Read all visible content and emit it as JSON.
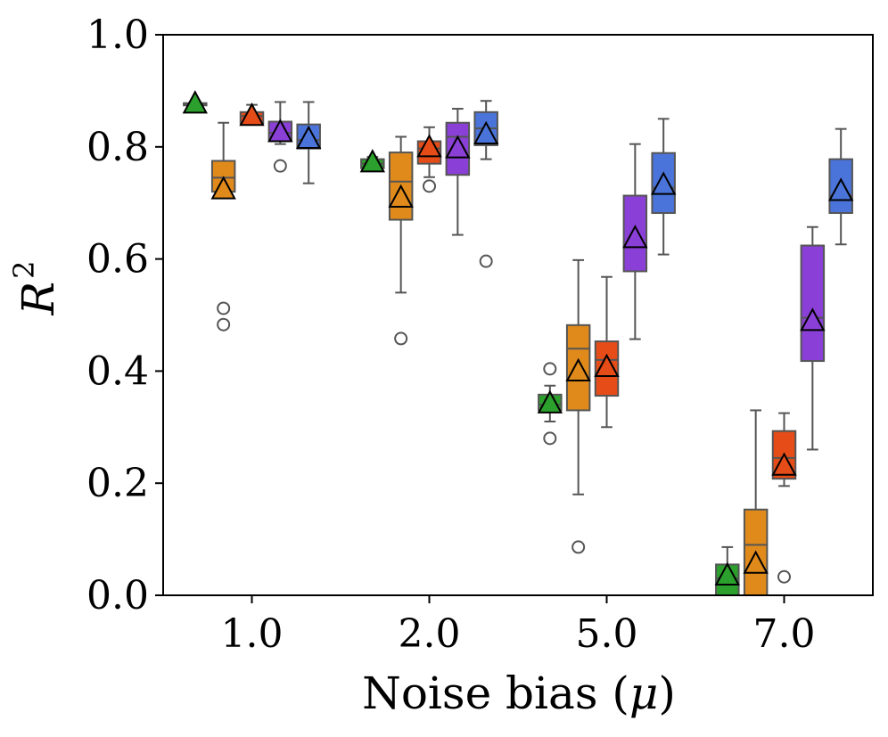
{
  "chart_data": {
    "type": "box",
    "title": "",
    "xlabel": "Noise bias",
    "xlabel_symbol": "μ",
    "ylabel": "R",
    "ylabel_superscript": "2",
    "ylim": [
      0.0,
      1.0
    ],
    "yticks": [
      "0.0",
      "0.2",
      "0.4",
      "0.6",
      "0.8",
      "1.0"
    ],
    "categories": [
      "1.0",
      "2.0",
      "5.0",
      "7.0"
    ],
    "grid": false,
    "series": [
      {
        "color": "#2ca02c",
        "boxes": [
          {
            "min": 0.874,
            "q1": 0.874,
            "median": 0.876,
            "q3": 0.878,
            "max": 0.88,
            "mean": 0.878,
            "outliers": []
          },
          {
            "min": 0.758,
            "q1": 0.762,
            "median": 0.77,
            "q3": 0.778,
            "max": 0.782,
            "mean": 0.773,
            "outliers": []
          },
          {
            "min": 0.31,
            "q1": 0.33,
            "median": 0.34,
            "q3": 0.358,
            "max": 0.374,
            "mean": 0.343,
            "outliers": [
              0.28,
              0.404
            ]
          },
          {
            "min": 0.0,
            "q1": 0.0,
            "median": 0.03,
            "q3": 0.055,
            "max": 0.086,
            "mean": 0.036,
            "outliers": []
          }
        ]
      },
      {
        "color": "#e08a1b",
        "boxes": [
          {
            "min": 0.72,
            "q1": 0.72,
            "median": 0.745,
            "q3": 0.775,
            "max": 0.843,
            "mean": 0.725,
            "outliers": [
              0.483,
              0.512
            ]
          },
          {
            "min": 0.54,
            "q1": 0.67,
            "median": 0.738,
            "q3": 0.79,
            "max": 0.818,
            "mean": 0.71,
            "outliers": [
              0.458
            ]
          },
          {
            "min": 0.18,
            "q1": 0.33,
            "median": 0.44,
            "q3": 0.482,
            "max": 0.598,
            "mean": 0.4,
            "outliers": [
              0.086
            ]
          },
          {
            "min": 0.0,
            "q1": 0.0,
            "median": 0.09,
            "q3": 0.153,
            "max": 0.33,
            "mean": 0.057,
            "outliers": []
          }
        ]
      },
      {
        "color": "#e54c18",
        "boxes": [
          {
            "min": 0.842,
            "q1": 0.842,
            "median": 0.855,
            "q3": 0.862,
            "max": 0.875,
            "mean": 0.856,
            "outliers": []
          },
          {
            "min": 0.746,
            "q1": 0.77,
            "median": 0.797,
            "q3": 0.81,
            "max": 0.835,
            "mean": 0.8,
            "outliers": [
              0.73
            ]
          },
          {
            "min": 0.3,
            "q1": 0.356,
            "median": 0.42,
            "q3": 0.453,
            "max": 0.568,
            "mean": 0.408,
            "outliers": []
          },
          {
            "min": 0.195,
            "q1": 0.208,
            "median": 0.245,
            "q3": 0.293,
            "max": 0.325,
            "mean": 0.232,
            "outliers": [
              0.033
            ]
          }
        ]
      },
      {
        "color": "#8a3fd6",
        "boxes": [
          {
            "min": 0.805,
            "q1": 0.81,
            "median": 0.825,
            "q3": 0.845,
            "max": 0.88,
            "mean": 0.827,
            "outliers": [
              0.766
            ]
          },
          {
            "min": 0.643,
            "q1": 0.75,
            "median": 0.818,
            "q3": 0.843,
            "max": 0.868,
            "mean": 0.798,
            "outliers": []
          },
          {
            "min": 0.457,
            "q1": 0.578,
            "median": 0.625,
            "q3": 0.713,
            "max": 0.805,
            "mean": 0.638,
            "outliers": []
          },
          {
            "min": 0.26,
            "q1": 0.418,
            "median": 0.495,
            "q3": 0.624,
            "max": 0.657,
            "mean": 0.49,
            "outliers": []
          }
        ]
      },
      {
        "color": "#4a74d9",
        "boxes": [
          {
            "min": 0.735,
            "q1": 0.797,
            "median": 0.812,
            "q3": 0.84,
            "max": 0.88,
            "mean": 0.815,
            "outliers": []
          },
          {
            "min": 0.778,
            "q1": 0.803,
            "median": 0.833,
            "q3": 0.862,
            "max": 0.882,
            "mean": 0.823,
            "outliers": [
              0.596
            ]
          },
          {
            "min": 0.608,
            "q1": 0.682,
            "median": 0.727,
            "q3": 0.789,
            "max": 0.85,
            "mean": 0.733,
            "outliers": []
          },
          {
            "min": 0.626,
            "q1": 0.682,
            "median": 0.713,
            "q3": 0.778,
            "max": 0.832,
            "mean": 0.722,
            "outliers": []
          }
        ]
      }
    ]
  }
}
